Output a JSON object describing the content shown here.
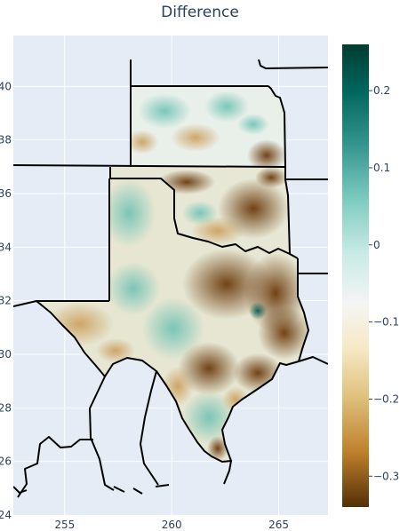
{
  "figure": {
    "title": "Difference"
  },
  "chart_data": {
    "type": "heatmap",
    "title": "Difference",
    "x_ticks": [
      255,
      260,
      265
    ],
    "y_ticks": [
      24,
      26,
      28,
      30,
      32,
      34,
      36,
      38,
      40
    ],
    "xlim": [
      252.6,
      267.3
    ],
    "ylim": [
      24,
      41.9
    ],
    "colorscale": "BrBG",
    "colorbar": {
      "range": [
        -0.34,
        0.26
      ],
      "ticks": [
        0.2,
        0.1,
        0,
        -0.1,
        -0.2,
        -0.3
      ],
      "tick_labels": [
        "0.2",
        "0.1",
        "0",
        "−0.1",
        "−0.2",
        "−0.3"
      ]
    },
    "grid": true,
    "plot_bgcolor": "#E5ECF6",
    "regions": [
      {
        "name": "Kansas",
        "dominant": "slight positive",
        "approx_range": [
          -0.1,
          0.12
        ]
      },
      {
        "name": "Oklahoma",
        "dominant": "mixed, negative in east",
        "approx_range": [
          -0.3,
          0.1
        ]
      },
      {
        "name": "Texas",
        "dominant": "negative in east, positive in west and south",
        "approx_range": [
          -0.33,
          0.25
        ]
      }
    ]
  }
}
